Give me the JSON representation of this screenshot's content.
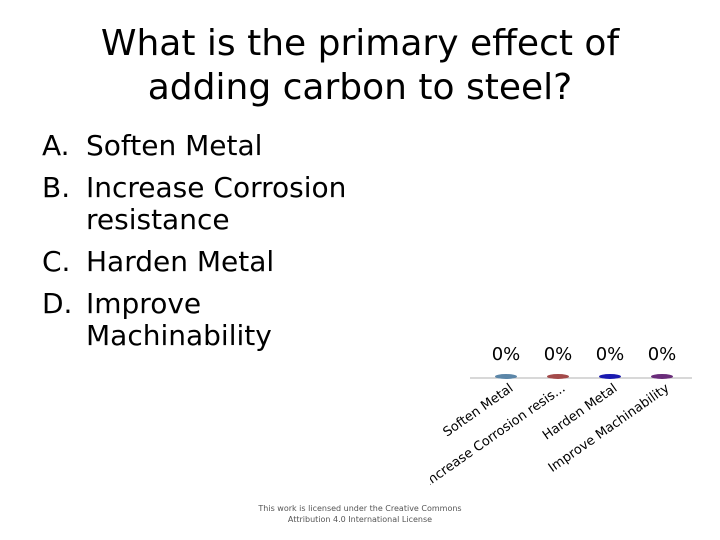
{
  "slide": {
    "title": "What is the primary effect of adding carbon to steel?",
    "answers": [
      {
        "letter": "A.",
        "text": "Soften Metal"
      },
      {
        "letter": "B.",
        "text": "Increase Corrosion resistance"
      },
      {
        "letter": "C.",
        "text": "Harden Metal"
      },
      {
        "letter": "D.",
        "text": "Improve Machinability"
      }
    ],
    "license": "This work is licensed under the Creative Commons Attribution 4.0 International License"
  },
  "chart_data": {
    "type": "bar",
    "categories": [
      "Soften Metal",
      "Increase Corrosion resis...",
      "Harden Metal",
      "Improve Machinability"
    ],
    "values": [
      0,
      0,
      0,
      0
    ],
    "value_labels": [
      "0%",
      "0%",
      "0%",
      "0%"
    ],
    "colors": [
      "#5b86a8",
      "#a34a4a",
      "#1a1ab0",
      "#6a2c7a"
    ],
    "ylim": [
      0,
      100
    ]
  }
}
